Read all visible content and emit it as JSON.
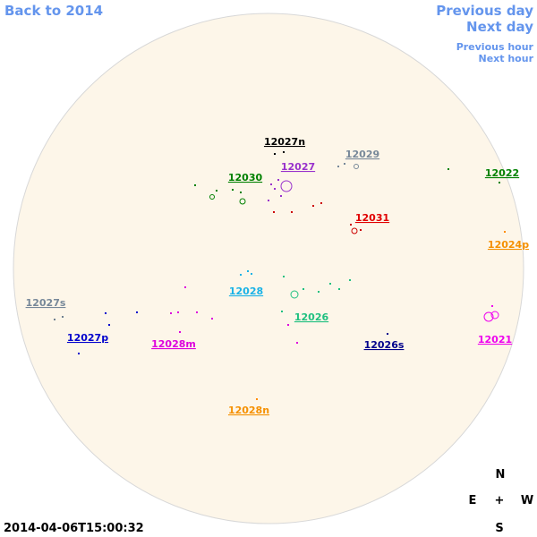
{
  "navigation": {
    "back": "Back to 2014",
    "previous_day": "Previous day",
    "next_day": "Next day",
    "previous_hour": "Previous hour",
    "next_hour": "Next hour"
  },
  "regions": [
    "12027n",
    "12029",
    "12027",
    "12022",
    "12030",
    "12031",
    "12024p",
    "12028",
    "12027s",
    "12026",
    "12027p",
    "12028m",
    "12026s",
    "12021",
    "12028n"
  ],
  "compass": {
    "north": "N",
    "east": "E",
    "center": "+",
    "west": "W",
    "south": "S"
  },
  "timestamp": "2014-04-06T15:00:32"
}
